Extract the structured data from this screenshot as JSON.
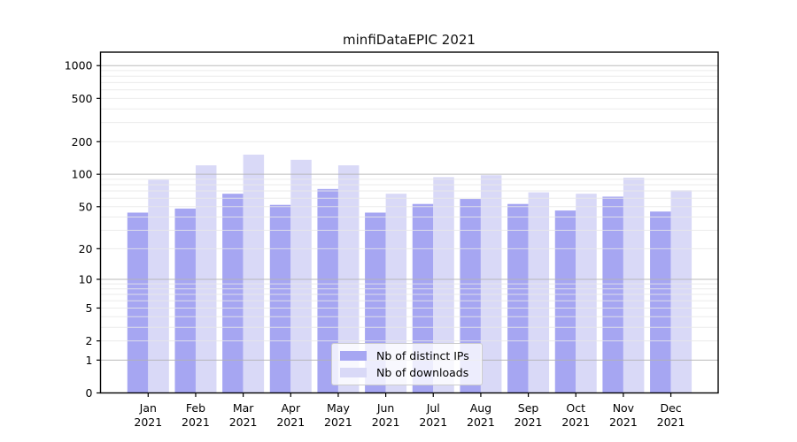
{
  "chart_data": {
    "type": "bar",
    "title": "minfiDataEPIC 2021",
    "xlabel": "",
    "ylabel": "",
    "y_scale": "log1p",
    "grid": "on",
    "legend_position": "lower center",
    "months": [
      "Jan",
      "Feb",
      "Mar",
      "Apr",
      "May",
      "Jun",
      "Jul",
      "Aug",
      "Sep",
      "Oct",
      "Nov",
      "Dec"
    ],
    "year_label": "2021",
    "categories": [
      "Jan 2021",
      "Feb 2021",
      "Mar 2021",
      "Apr 2021",
      "May 2021",
      "Jun 2021",
      "Jul 2021",
      "Aug 2021",
      "Sep 2021",
      "Oct 2021",
      "Nov 2021",
      "Dec 2021"
    ],
    "y_ticks": [
      0,
      1,
      2,
      5,
      10,
      20,
      50,
      100,
      200,
      500,
      1000
    ],
    "ylim": [
      0,
      1330
    ],
    "series": [
      {
        "name": "Nb of distinct IPs",
        "color": "#a6a6f2",
        "values": [
          44,
          48,
          66,
          52,
          73,
          44,
          53,
          59,
          53,
          46,
          62,
          45
        ]
      },
      {
        "name": "Nb of downloads",
        "color": "#d9d9f7",
        "values": [
          89,
          121,
          152,
          136,
          121,
          66,
          94,
          98,
          68,
          66,
          93,
          71
        ]
      }
    ],
    "colors": {
      "major_grid": "#b3b3b3",
      "minor_grid": "#e7e7e7",
      "spine": "#000000"
    }
  },
  "legend": {
    "items": [
      {
        "label": "Nb of distinct IPs",
        "color": "#a6a6f2"
      },
      {
        "label": "Nb of downloads",
        "color": "#d9d9f7"
      }
    ]
  }
}
